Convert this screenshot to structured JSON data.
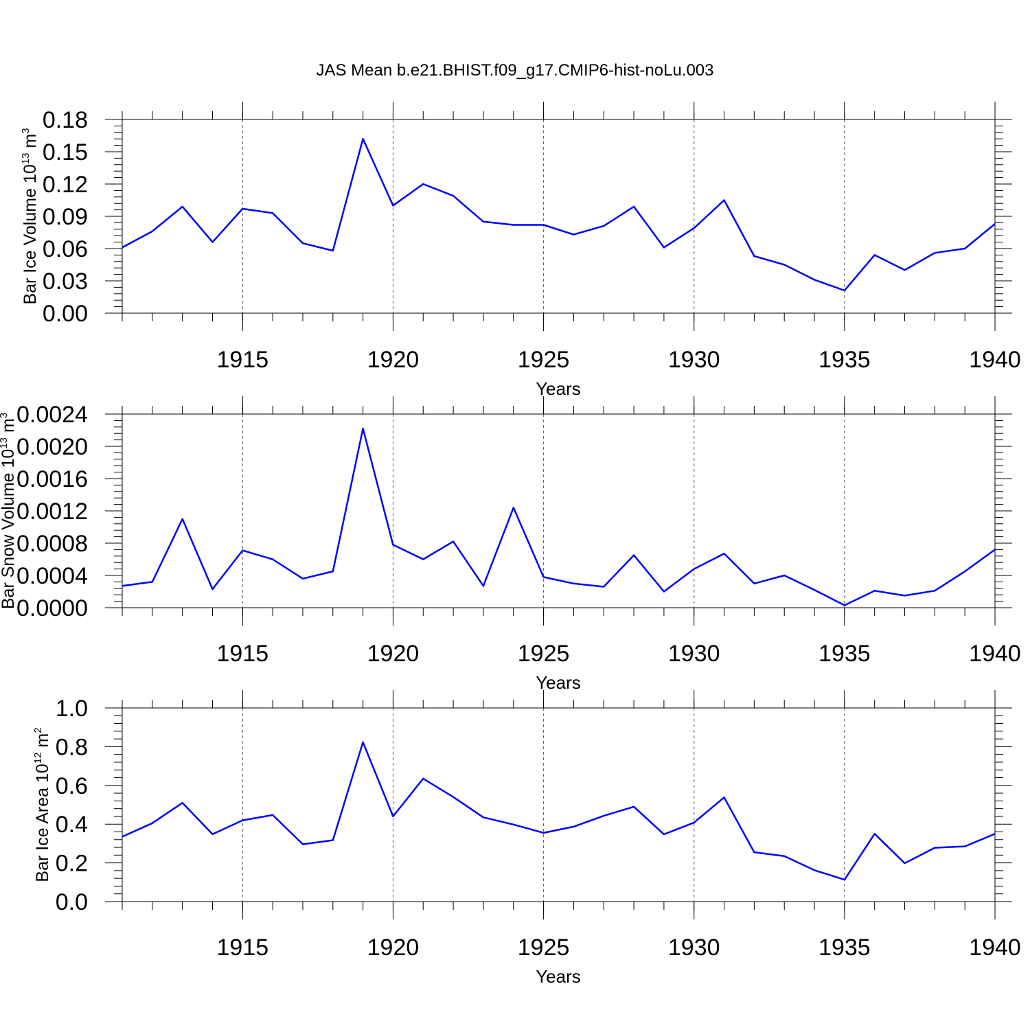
{
  "figure": {
    "title": "JAS Mean b.e21.BHIST.f09_g17.CMIP6-hist-noLu.003"
  },
  "chart_data": [
    {
      "type": "line",
      "xlabel": "Years",
      "ylabel": {
        "text": "Bar Ice Volume 10",
        "sup": "13",
        "unit": " m",
        "unit_sup": "3"
      },
      "xlim": [
        1911,
        1940
      ],
      "ylim": [
        0,
        0.18
      ],
      "yticks": [
        "0.00",
        "0.03",
        "0.06",
        "0.09",
        "0.12",
        "0.15",
        "0.18"
      ],
      "xticks": [
        "1915",
        "1920",
        "1925",
        "1930",
        "1935",
        "1940"
      ],
      "grid_x": "dashed at labeled years",
      "color": "#0000ff",
      "x": [
        1911,
        1912,
        1913,
        1914,
        1915,
        1916,
        1917,
        1918,
        1919,
        1920,
        1921,
        1922,
        1923,
        1924,
        1925,
        1926,
        1927,
        1928,
        1929,
        1930,
        1931,
        1932,
        1933,
        1934,
        1935,
        1936,
        1937,
        1938,
        1939,
        1940
      ],
      "y": [
        0.061,
        0.076,
        0.099,
        0.066,
        0.097,
        0.093,
        0.065,
        0.058,
        0.162,
        0.1,
        0.12,
        0.109,
        0.085,
        0.082,
        0.082,
        0.073,
        0.081,
        0.099,
        0.061,
        0.079,
        0.105,
        0.053,
        0.045,
        0.031,
        0.021,
        0.054,
        0.04,
        0.056,
        0.06,
        0.083
      ]
    },
    {
      "type": "line",
      "xlabel": "Years",
      "ylabel": {
        "text": "Bar Snow Volume 10",
        "sup": "13",
        "unit": " m",
        "unit_sup": "3"
      },
      "xlim": [
        1911,
        1940
      ],
      "ylim": [
        0,
        0.0024
      ],
      "yticks": [
        "0.0000",
        "0.0004",
        "0.0008",
        "0.0012",
        "0.0016",
        "0.0020",
        "0.0024"
      ],
      "xticks": [
        "1915",
        "1920",
        "1925",
        "1930",
        "1935",
        "1940"
      ],
      "grid_x": "dashed at labeled years",
      "color": "#0000ff",
      "x": [
        1911,
        1912,
        1913,
        1914,
        1915,
        1916,
        1917,
        1918,
        1919,
        1920,
        1921,
        1922,
        1923,
        1924,
        1925,
        1926,
        1927,
        1928,
        1929,
        1930,
        1931,
        1932,
        1933,
        1934,
        1935,
        1936,
        1937,
        1938,
        1939,
        1940
      ],
      "y": [
        0.00027,
        0.00032,
        0.0011,
        0.00023,
        0.00071,
        0.0006,
        0.00036,
        0.00045,
        0.00222,
        0.00078,
        0.0006,
        0.00082,
        0.00027,
        0.00124,
        0.00038,
        0.0003,
        0.00026,
        0.00065,
        0.0002,
        0.00048,
        0.00067,
        0.0003,
        0.0004,
        0.00022,
        3e-05,
        0.00021,
        0.00015,
        0.00021,
        0.00045,
        0.00072
      ]
    },
    {
      "type": "line",
      "xlabel": "Years",
      "ylabel": {
        "text": "Bar Ice Area 10",
        "sup": "12",
        "unit": " m",
        "unit_sup": "2"
      },
      "xlim": [
        1911,
        1940
      ],
      "ylim": [
        0,
        1.0
      ],
      "yticks": [
        "0.0",
        "0.2",
        "0.4",
        "0.6",
        "0.8",
        "1.0"
      ],
      "xticks": [
        "1915",
        "1920",
        "1925",
        "1930",
        "1935",
        "1940"
      ],
      "grid_x": "dashed at labeled years",
      "color": "#0000ff",
      "x": [
        1911,
        1912,
        1913,
        1914,
        1915,
        1916,
        1917,
        1918,
        1919,
        1920,
        1921,
        1922,
        1923,
        1924,
        1925,
        1926,
        1927,
        1928,
        1929,
        1930,
        1931,
        1932,
        1933,
        1934,
        1935,
        1936,
        1937,
        1938,
        1939,
        1940
      ],
      "y": [
        0.335,
        0.405,
        0.51,
        0.348,
        0.42,
        0.447,
        0.296,
        0.317,
        0.823,
        0.44,
        0.635,
        0.54,
        0.435,
        0.398,
        0.355,
        0.387,
        0.443,
        0.49,
        0.347,
        0.408,
        0.538,
        0.255,
        0.235,
        0.162,
        0.113,
        0.35,
        0.198,
        0.278,
        0.285,
        0.35
      ]
    }
  ]
}
